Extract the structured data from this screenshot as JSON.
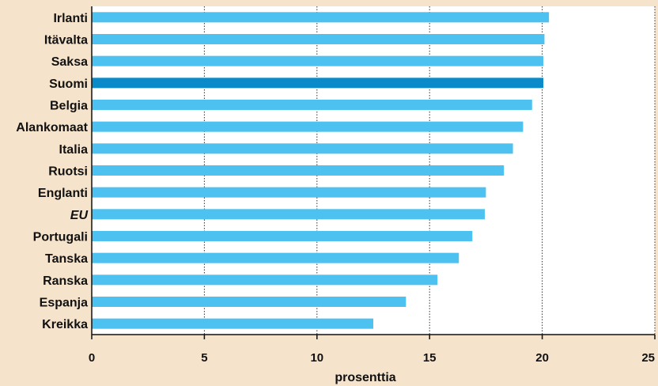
{
  "chart_data": {
    "type": "bar",
    "orientation": "horizontal",
    "categories": [
      "Irlanti",
      "Itävalta",
      "Saksa",
      "Suomi",
      "Belgia",
      "Alankomaat",
      "Italia",
      "Ruotsi",
      "Englanti",
      "EU",
      "Portugali",
      "Tanska",
      "Ranska",
      "Espanja",
      "Kreikka"
    ],
    "values": [
      20.3,
      20.1,
      20.05,
      20.05,
      19.55,
      19.15,
      18.7,
      18.3,
      17.5,
      17.45,
      16.9,
      16.3,
      15.35,
      13.95,
      12.5
    ],
    "highlight": "Suomi",
    "italic_category": "EU",
    "xlabel": "prosenttia",
    "xlim": [
      0,
      25
    ],
    "xticks": [
      0,
      5,
      10,
      15,
      20,
      25
    ],
    "grid": "vertical dotted",
    "colors": {
      "bar": "#4dc1f0",
      "highlight_bar": "#0a8ac8",
      "plot_background": "#ffffff",
      "page_background": "#f5e3cc"
    }
  }
}
